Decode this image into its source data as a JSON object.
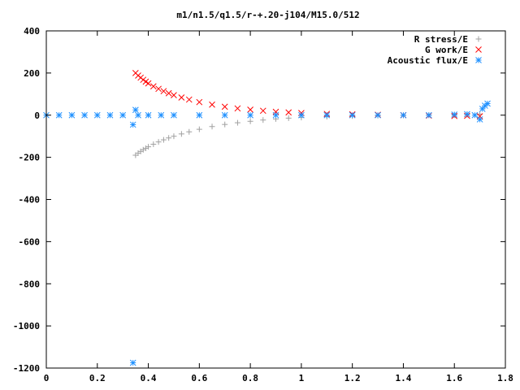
{
  "chart_data": {
    "type": "scatter",
    "title": "m1/n1.5/q1.5/r-+.20-j104/M15.0/512",
    "xlabel": "",
    "ylabel": "",
    "xlim": [
      0,
      1.8
    ],
    "ylim": [
      -1200,
      400
    ],
    "x_ticks": [
      0,
      0.2,
      0.4,
      0.6,
      0.8,
      1,
      1.2,
      1.4,
      1.6,
      1.8
    ],
    "x_tick_labels": [
      "0",
      "0.2",
      "0.4",
      "0.6",
      "0.8",
      "1",
      "1.2",
      "1.4",
      "1.6",
      "1.8"
    ],
    "y_ticks": [
      400,
      200,
      0,
      -200,
      -400,
      -600,
      -800,
      -1000,
      -1200
    ],
    "y_tick_labels": [
      "400",
      "200",
      "0",
      "-200",
      "-400",
      "-600",
      "-800",
      "-1000",
      "-1200"
    ],
    "grid": false,
    "legend_position": "top-right",
    "series": [
      {
        "name": "R stress/E",
        "marker": "plus",
        "color": "#a0a0a0",
        "x": [
          0.35,
          0.36,
          0.37,
          0.38,
          0.39,
          0.4,
          0.42,
          0.44,
          0.46,
          0.48,
          0.5,
          0.53,
          0.56,
          0.6,
          0.65,
          0.7,
          0.75,
          0.8,
          0.85,
          0.9,
          0.95,
          1.0,
          1.1,
          1.2,
          1.3,
          1.4,
          1.5,
          1.6,
          1.65,
          1.7
        ],
        "y": [
          -190,
          -180,
          -172,
          -164,
          -157,
          -150,
          -138,
          -127,
          -117,
          -108,
          -100,
          -89,
          -79,
          -67,
          -54,
          -44,
          -36,
          -29,
          -23,
          -18,
          -14,
          -11,
          -7,
          -4,
          -2,
          -1,
          0,
          0,
          2,
          5
        ]
      },
      {
        "name": "G work/E",
        "marker": "cross",
        "color": "#ff0000",
        "x": [
          0.35,
          0.36,
          0.37,
          0.38,
          0.39,
          0.4,
          0.42,
          0.44,
          0.46,
          0.48,
          0.5,
          0.53,
          0.56,
          0.6,
          0.65,
          0.7,
          0.75,
          0.8,
          0.85,
          0.9,
          0.95,
          1.0,
          1.1,
          1.2,
          1.3,
          1.4,
          1.5,
          1.6,
          1.65,
          1.7
        ],
        "y": [
          200,
          188,
          178,
          168,
          159,
          151,
          137,
          125,
          114,
          104,
          95,
          84,
          74,
          62,
          50,
          40,
          32,
          26,
          21,
          16,
          13,
          10,
          6,
          4,
          2,
          0,
          -2,
          -4,
          -3,
          -5
        ]
      },
      {
        "name": "Acoustic flux/E",
        "marker": "star",
        "color": "#1e90ff",
        "x": [
          0.0,
          0.05,
          0.1,
          0.15,
          0.2,
          0.25,
          0.3,
          0.34,
          0.34,
          0.35,
          0.36,
          0.4,
          0.45,
          0.5,
          0.6,
          0.7,
          0.8,
          0.9,
          1.0,
          1.1,
          1.2,
          1.3,
          1.4,
          1.5,
          1.6,
          1.65,
          1.68,
          1.7,
          1.71,
          1.72,
          1.73
        ],
        "y": [
          0,
          0,
          0,
          0,
          0,
          0,
          0,
          -45,
          -1175,
          25,
          0,
          0,
          0,
          0,
          0,
          0,
          0,
          0,
          0,
          0,
          0,
          0,
          0,
          0,
          3,
          5,
          0,
          -20,
          30,
          45,
          55
        ]
      }
    ]
  }
}
